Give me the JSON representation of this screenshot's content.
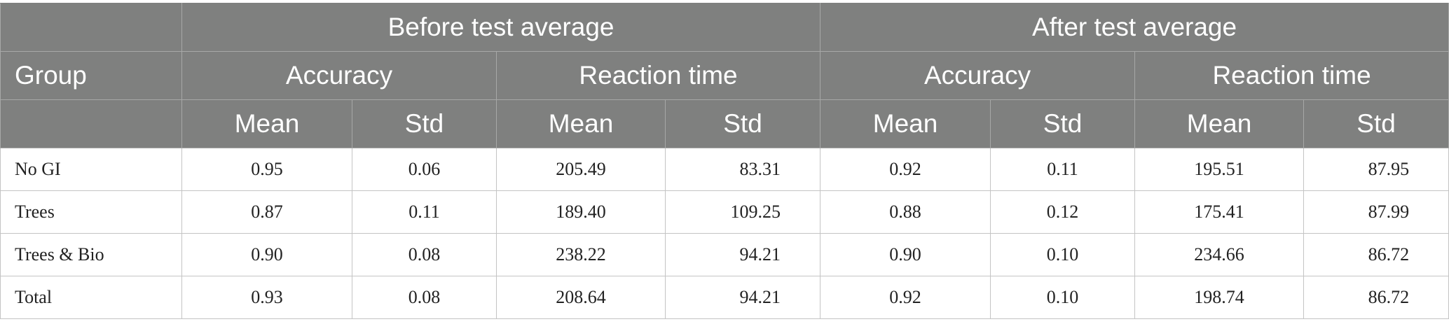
{
  "table": {
    "header": {
      "group_label": "Group",
      "before_label": "Before test average",
      "after_label": "After test average",
      "accuracy_label": "Accuracy",
      "reaction_label": "Reaction time",
      "mean_label": "Mean",
      "std_label": "Std"
    },
    "rows": [
      {
        "group": "No GI",
        "before": {
          "acc_mean": "0.95",
          "acc_std": "0.06",
          "rt_mean": "205.49",
          "rt_std": "83.31"
        },
        "after": {
          "acc_mean": "0.92",
          "acc_std": "0.11",
          "rt_mean": "195.51",
          "rt_std": "87.95"
        }
      },
      {
        "group": "Trees",
        "before": {
          "acc_mean": "0.87",
          "acc_std": "0.11",
          "rt_mean": "189.40",
          "rt_std": "109.25"
        },
        "after": {
          "acc_mean": "0.88",
          "acc_std": "0.12",
          "rt_mean": "175.41",
          "rt_std": "87.99"
        }
      },
      {
        "group": "Trees & Bio",
        "before": {
          "acc_mean": "0.90",
          "acc_std": "0.08",
          "rt_mean": "238.22",
          "rt_std": "94.21"
        },
        "after": {
          "acc_mean": "0.90",
          "acc_std": "0.10",
          "rt_mean": "234.66",
          "rt_std": "86.72"
        }
      },
      {
        "group": "Total",
        "before": {
          "acc_mean": "0.93",
          "acc_std": "0.08",
          "rt_mean": "208.64",
          "rt_std": "94.21"
        },
        "after": {
          "acc_mean": "0.92",
          "acc_std": "0.10",
          "rt_mean": "198.74",
          "rt_std": "86.72"
        }
      }
    ]
  }
}
